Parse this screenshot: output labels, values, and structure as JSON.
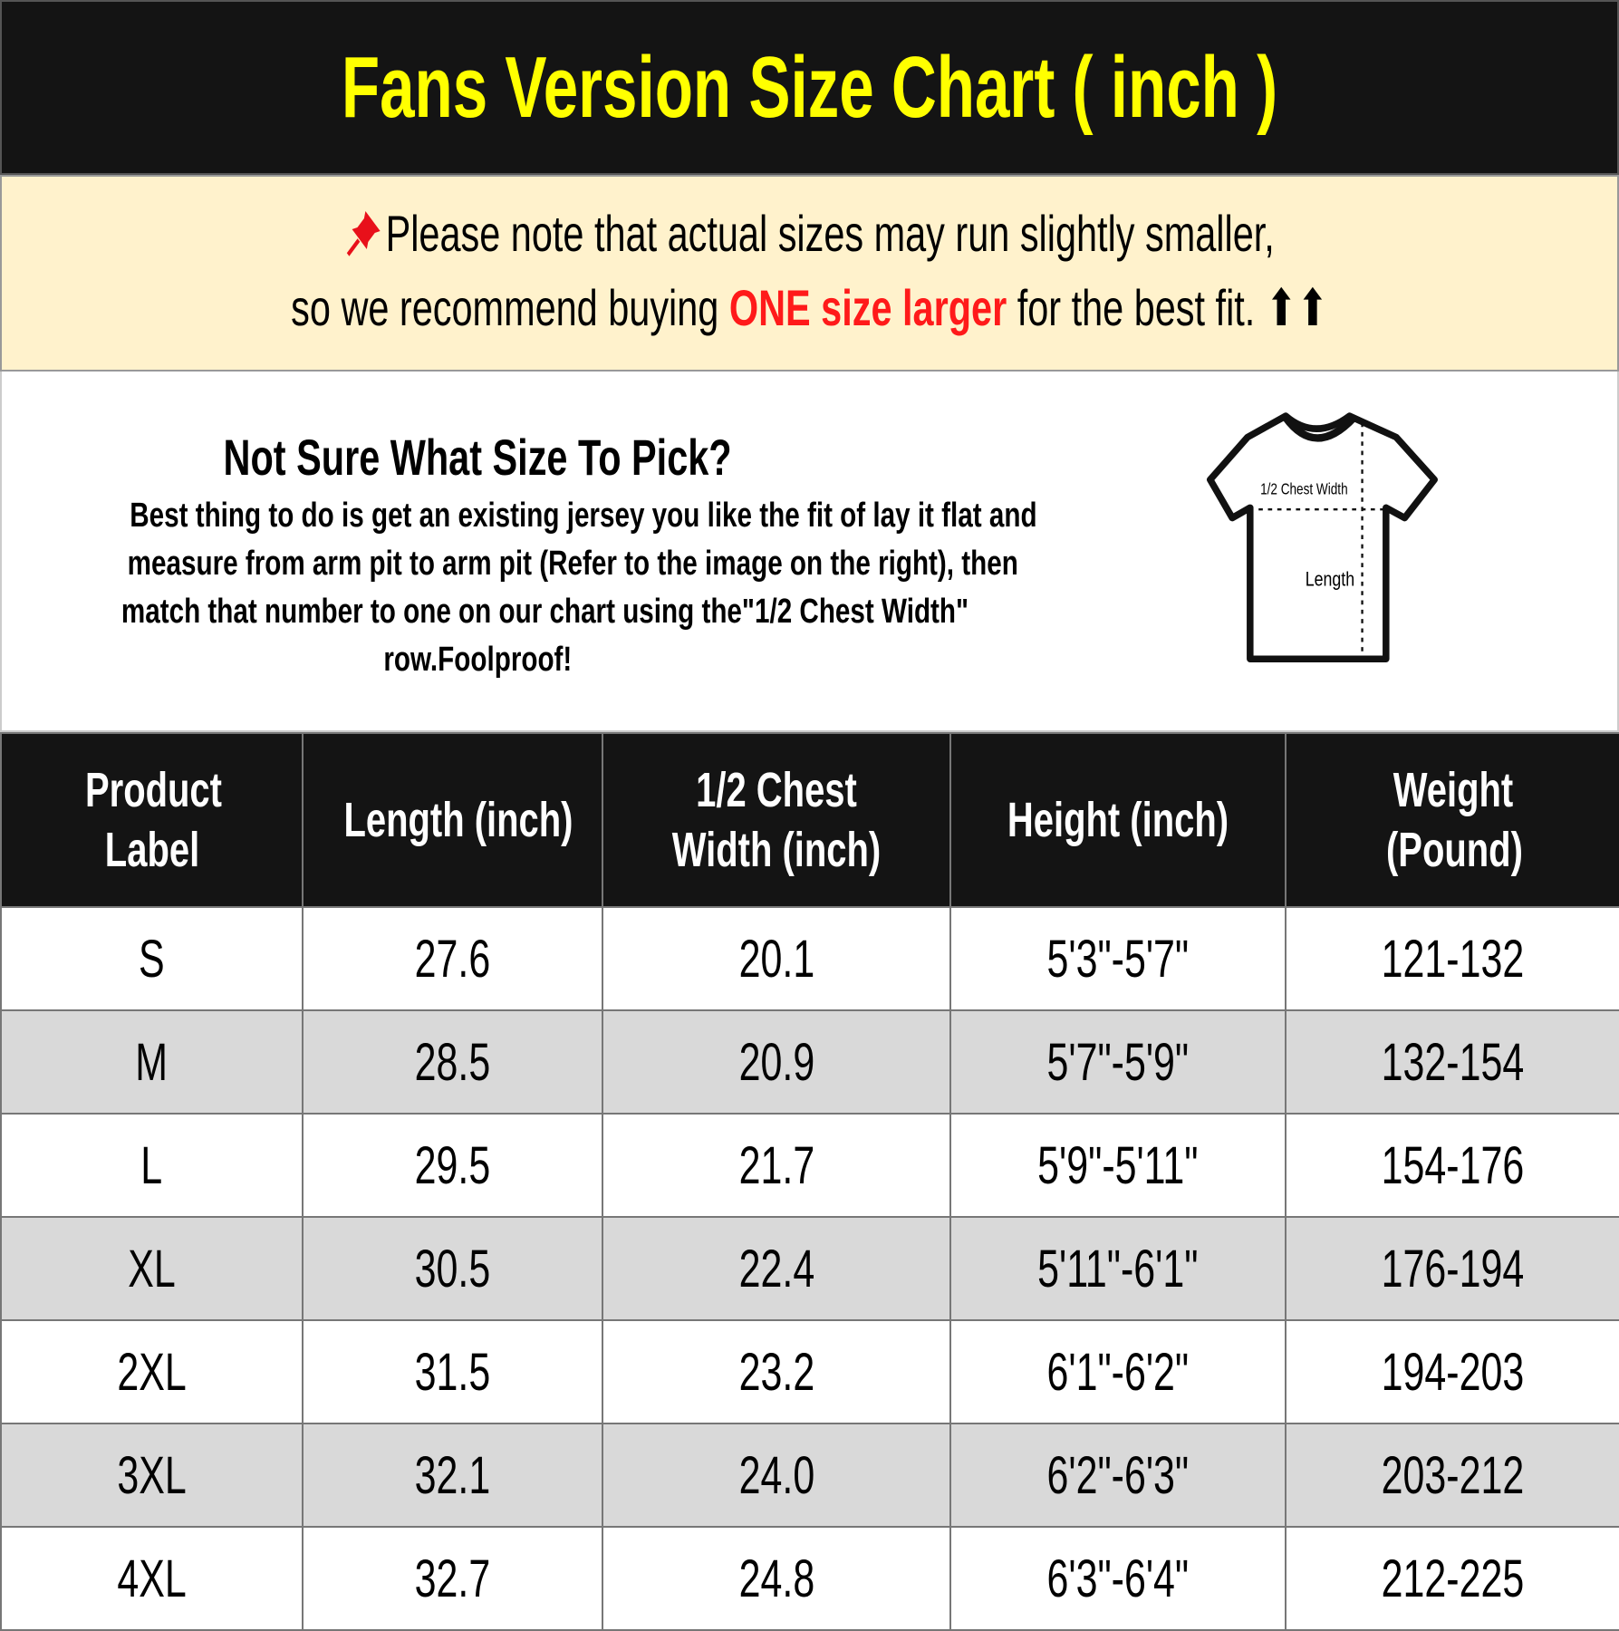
{
  "title": "Fans Version Size Chart ( inch )",
  "note": {
    "icon": "pushpin-icon",
    "line1": "Please note that actual sizes may run slightly smaller,",
    "line2_pre": "so we recommend buying ",
    "line2_highlight": "ONE size larger",
    "line2_post": " for the best fit. ",
    "arrows": "⬆⬆",
    "highlight_color": "#ff1a1a"
  },
  "info": {
    "heading": "Not Sure What Size To Pick?",
    "lines": [
      "Best thing to do is get an existing jersey you like the fit of lay it flat and",
      "measure from arm pit to arm pit (Refer to the image on the right), then",
      "match that number to one on our chart using the\"1/2 Chest Width\"",
      "row.Foolproof!"
    ],
    "diagram": {
      "chest_label": "1/2 Chest Width",
      "length_label": "Length"
    }
  },
  "table": {
    "headers": [
      "Product Label",
      "Length (inch)",
      "1/2 Chest Width (inch)",
      "Height (inch)",
      "Weight (Pound)"
    ],
    "rows": [
      [
        "S",
        "27.6",
        "20.1",
        "5'3\"-5'7\"",
        "121-132"
      ],
      [
        "M",
        "28.5",
        "20.9",
        "5'7\"-5'9\"",
        "132-154"
      ],
      [
        "L",
        "29.5",
        "21.7",
        "5'9\"-5'11\"",
        "154-176"
      ],
      [
        "XL",
        "30.5",
        "22.4",
        "5'11\"-6'1\"",
        "176-194"
      ],
      [
        "2XL",
        "31.5",
        "23.2",
        "6'1\"-6'2\"",
        "194-203"
      ],
      [
        "3XL",
        "32.1",
        "24.0",
        "6'2\"-6'3\"",
        "203-212"
      ],
      [
        "4XL",
        "32.7",
        "24.8",
        "6'3\"-6'4\"",
        "212-225"
      ]
    ]
  }
}
